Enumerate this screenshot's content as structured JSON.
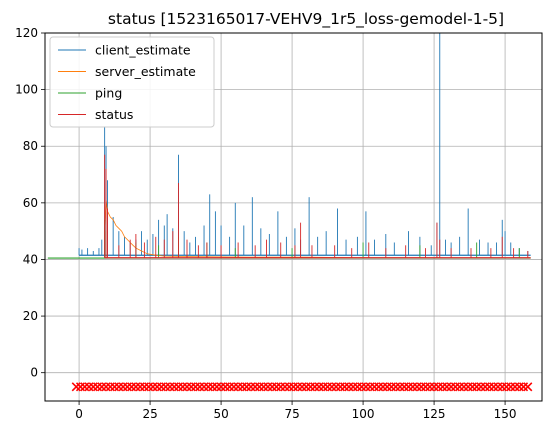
{
  "chart_data": {
    "type": "line",
    "title": "status [1523165017-VEHV9_1r5_loss-gemodel-1-5]",
    "xlabel": "",
    "ylabel": "",
    "xlim": [
      -12,
      163
    ],
    "ylim": [
      -10,
      120
    ],
    "x_ticks": [
      0,
      25,
      50,
      75,
      100,
      125,
      150
    ],
    "y_ticks": [
      0,
      20,
      40,
      60,
      80,
      100,
      120
    ],
    "grid": true,
    "legend_position": "top-left",
    "series": [
      {
        "name": "client_estimate",
        "color": "#1f77b4",
        "baseline": 41.5,
        "x_range": [
          0,
          159
        ],
        "spikes": [
          [
            0,
            44
          ],
          [
            1,
            43.5
          ],
          [
            3,
            44
          ],
          [
            5,
            43
          ],
          [
            7,
            44
          ],
          [
            8,
            47
          ],
          [
            9,
            87
          ],
          [
            9.5,
            80
          ],
          [
            10,
            68
          ],
          [
            12,
            55
          ],
          [
            14,
            50
          ],
          [
            16,
            48
          ],
          [
            18,
            46
          ],
          [
            20,
            47
          ],
          [
            22,
            50
          ],
          [
            24,
            47
          ],
          [
            26,
            49
          ],
          [
            28,
            54
          ],
          [
            30,
            52
          ],
          [
            31,
            56
          ],
          [
            33,
            51
          ],
          [
            35,
            77
          ],
          [
            37,
            50
          ],
          [
            39,
            46
          ],
          [
            41,
            48
          ],
          [
            44,
            52
          ],
          [
            46,
            63
          ],
          [
            48,
            57
          ],
          [
            50,
            52
          ],
          [
            53,
            48
          ],
          [
            55,
            60
          ],
          [
            58,
            52
          ],
          [
            61,
            62
          ],
          [
            64,
            51
          ],
          [
            67,
            49
          ],
          [
            70,
            57
          ],
          [
            73,
            48
          ],
          [
            76,
            51
          ],
          [
            78,
            47
          ],
          [
            81,
            62
          ],
          [
            84,
            48
          ],
          [
            87,
            50
          ],
          [
            91,
            58
          ],
          [
            94,
            47
          ],
          [
            98,
            48
          ],
          [
            101,
            57
          ],
          [
            104,
            47
          ],
          [
            108,
            49
          ],
          [
            111,
            46
          ],
          [
            116,
            50
          ],
          [
            120,
            48
          ],
          [
            124,
            45
          ],
          [
            126,
            53
          ],
          [
            127,
            135
          ],
          [
            129,
            47
          ],
          [
            131,
            46
          ],
          [
            134,
            48
          ],
          [
            137,
            58
          ],
          [
            141,
            47
          ],
          [
            144,
            46
          ],
          [
            147,
            46
          ],
          [
            149,
            54
          ],
          [
            150,
            50
          ],
          [
            152,
            46
          ],
          [
            155,
            44
          ],
          [
            158,
            43
          ]
        ]
      },
      {
        "name": "server_estimate",
        "color": "#ff7f0e",
        "points": [
          [
            9,
            52
          ],
          [
            9.5,
            61
          ],
          [
            10,
            57
          ],
          [
            11,
            55
          ],
          [
            12,
            54
          ],
          [
            13,
            52
          ],
          [
            14,
            51
          ],
          [
            15,
            50
          ],
          [
            16,
            48
          ],
          [
            17,
            47
          ],
          [
            18,
            46
          ],
          [
            19,
            45
          ],
          [
            20,
            44
          ],
          [
            22,
            43
          ],
          [
            24,
            42
          ],
          [
            27,
            41.5
          ],
          [
            30,
            41.2
          ],
          [
            40,
            41
          ],
          [
            60,
            40.8
          ],
          [
            80,
            40.8
          ],
          [
            100,
            40.6
          ],
          [
            120,
            40.6
          ],
          [
            140,
            40.5
          ],
          [
            159,
            40.5
          ]
        ]
      },
      {
        "name": "ping",
        "color": "#2ca02c",
        "baseline": 40.5,
        "x_range": [
          -11,
          159
        ],
        "spikes": [
          [
            9,
            54
          ],
          [
            9.5,
            50
          ],
          [
            20,
            46
          ],
          [
            28,
            45
          ],
          [
            35,
            48
          ],
          [
            45,
            46
          ],
          [
            55,
            44
          ],
          [
            75,
            44
          ],
          [
            100,
            46
          ],
          [
            120,
            45
          ],
          [
            140,
            46
          ],
          [
            155,
            44
          ]
        ]
      },
      {
        "name": "status",
        "color": "#d62728",
        "baseline": 40.6,
        "x_range": [
          9,
          159
        ],
        "spikes": [
          [
            9,
            77
          ],
          [
            9.5,
            72
          ],
          [
            10,
            58
          ],
          [
            14,
            45
          ],
          [
            18,
            47
          ],
          [
            20,
            49
          ],
          [
            23,
            46
          ],
          [
            27,
            48
          ],
          [
            30,
            47
          ],
          [
            33,
            50
          ],
          [
            35,
            67
          ],
          [
            38,
            47
          ],
          [
            42,
            45
          ],
          [
            45,
            46
          ],
          [
            50,
            45
          ],
          [
            56,
            46
          ],
          [
            62,
            45
          ],
          [
            66,
            47
          ],
          [
            71,
            46
          ],
          [
            76,
            45
          ],
          [
            78,
            53
          ],
          [
            82,
            45
          ],
          [
            90,
            45
          ],
          [
            96,
            44
          ],
          [
            102,
            46
          ],
          [
            108,
            44
          ],
          [
            115,
            45
          ],
          [
            122,
            44
          ],
          [
            126,
            53
          ],
          [
            127,
            47
          ],
          [
            131,
            44
          ],
          [
            138,
            44
          ],
          [
            145,
            44
          ],
          [
            149,
            48
          ],
          [
            153,
            44
          ],
          [
            158,
            43
          ]
        ]
      }
    ],
    "marker_row": {
      "y": -5,
      "x_range": [
        -1,
        159
      ],
      "color": "#ff0000",
      "marker": "x"
    }
  }
}
